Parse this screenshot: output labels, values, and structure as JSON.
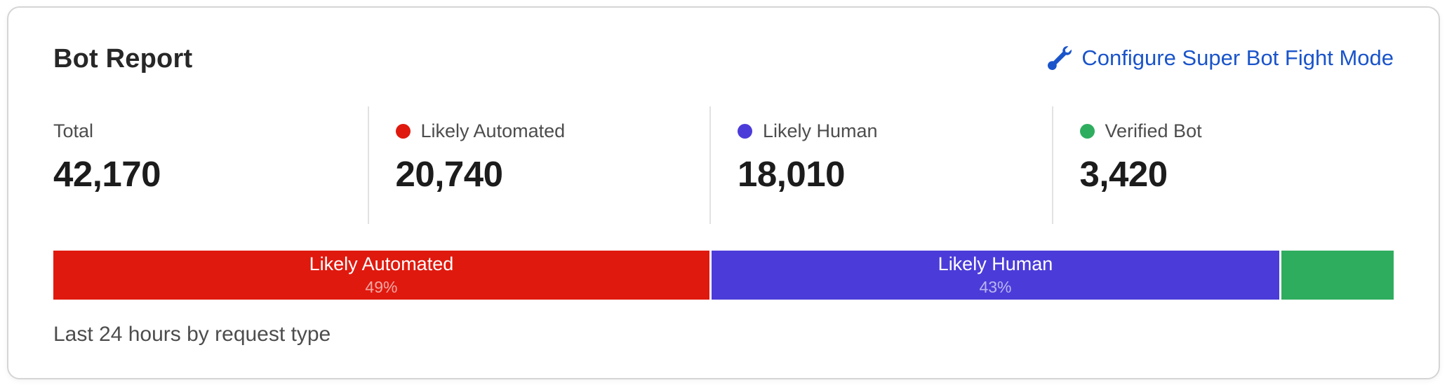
{
  "card": {
    "title": "Bot Report",
    "action_link": {
      "label": "Configure Super Bot Fight Mode",
      "icon": "wrench-icon",
      "color": "#1a54ca"
    },
    "caption": "Last 24 hours by request type"
  },
  "stats": [
    {
      "label": "Total",
      "value": "42,170",
      "dot_color": null
    },
    {
      "label": "Likely Automated",
      "value": "20,740",
      "dot_color": "#e0190e"
    },
    {
      "label": "Likely Human",
      "value": "18,010",
      "dot_color": "#4b3cd9"
    },
    {
      "label": "Verified Bot",
      "value": "3,420",
      "dot_color": "#2fad5f"
    }
  ],
  "chart_data": {
    "type": "bar",
    "variant": "horizontal-stacked",
    "title": "Bot Report",
    "subtitle": "Last 24 hours by request type",
    "total": 42170,
    "categories": [
      "Likely Automated",
      "Likely Human",
      "Verified Bot"
    ],
    "values": [
      20740,
      18010,
      3420
    ],
    "segments": [
      {
        "name": "Likely Automated",
        "value": 20740,
        "pct_label": "49%",
        "width_pct": 49.1,
        "color": "#e0190e",
        "show_label": true
      },
      {
        "name": "Likely Human",
        "value": 18010,
        "pct_label": "43%",
        "width_pct": 42.5,
        "color": "#4b3cd9",
        "show_label": true
      },
      {
        "name": "Verified Bot",
        "value": 3420,
        "pct_label": "",
        "width_pct": 8.4,
        "color": "#2fad5f",
        "show_label": false
      }
    ],
    "legend_position": "top",
    "grid": false
  },
  "colors": {
    "card_border": "#d5d5d5",
    "divider": "#e2e2e2",
    "title_text": "#272727",
    "label_text": "#4d4d4d",
    "value_text": "#1c1c1c",
    "link_blue": "#1a54ca",
    "red": "#e0190e",
    "purple": "#4b3cd9",
    "green": "#2fad5f"
  }
}
